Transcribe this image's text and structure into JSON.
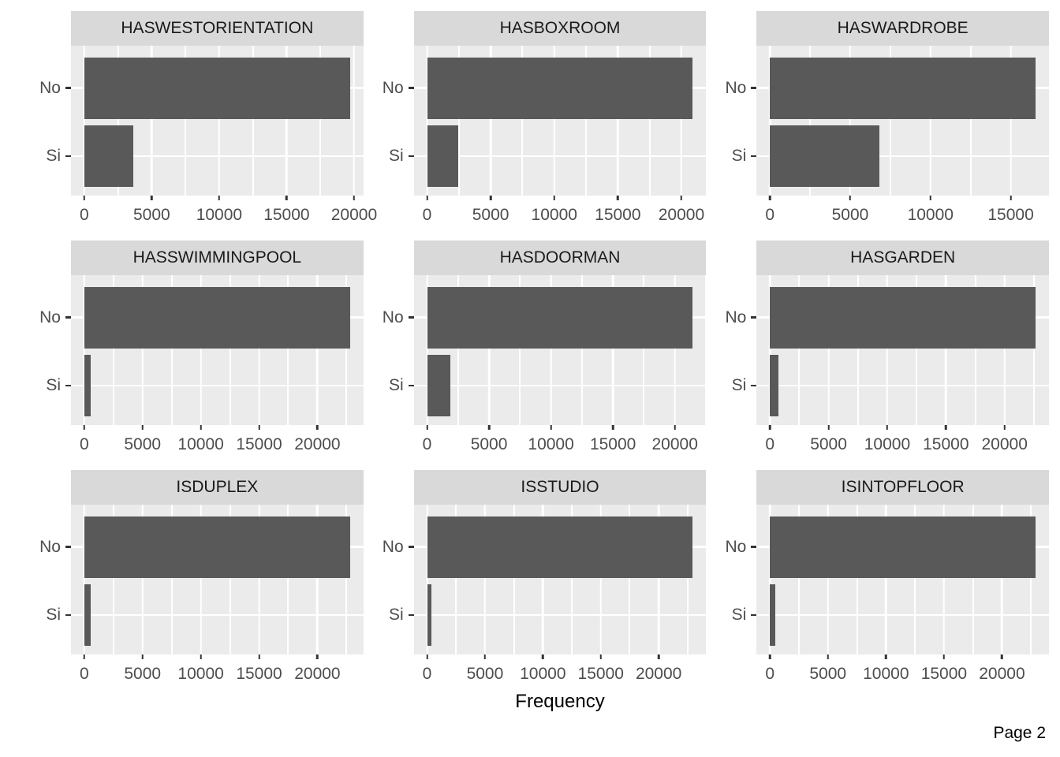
{
  "figure": {
    "xlabel": "Frequency",
    "page_label": "Page 2"
  },
  "style": {
    "bar_color": "#595959",
    "panel_bg": "#EBEBEB",
    "strip_bg": "#D9D9D9",
    "grid_color": "#FFFFFF",
    "axis_text_color": "#4D4D4D",
    "tick_mark_color": "#333333",
    "strip_text_color": "#1A1A1A",
    "background": "#FFFFFF"
  },
  "chart_data": [
    {
      "type": "bar",
      "orientation": "horizontal",
      "title": "HASWESTORIENTATION",
      "categories": [
        "No",
        "Si"
      ],
      "values": [
        19700,
        3650
      ],
      "x_ticks": [
        0,
        5000,
        10000,
        15000,
        20000
      ],
      "xlim": [
        -985,
        20685
      ],
      "grid": true
    },
    {
      "type": "bar",
      "orientation": "horizontal",
      "title": "HASBOXROOM",
      "categories": [
        "No",
        "Si"
      ],
      "values": [
        20900,
        2450
      ],
      "x_ticks": [
        0,
        5000,
        10000,
        15000,
        20000
      ],
      "xlim": [
        -1045,
        21945
      ],
      "grid": true
    },
    {
      "type": "bar",
      "orientation": "horizontal",
      "title": "HASWARDROBE",
      "categories": [
        "No",
        "Si"
      ],
      "values": [
        16550,
        6800
      ],
      "x_ticks": [
        0,
        5000,
        10000,
        15000
      ],
      "xlim": [
        -828,
        17378
      ],
      "grid": true
    },
    {
      "type": "bar",
      "orientation": "horizontal",
      "title": "HASSWIMMINGPOOL",
      "categories": [
        "No",
        "Si"
      ],
      "values": [
        22800,
        550
      ],
      "x_ticks": [
        0,
        5000,
        10000,
        15000,
        20000
      ],
      "xlim": [
        -1140,
        23940
      ],
      "grid": true
    },
    {
      "type": "bar",
      "orientation": "horizontal",
      "title": "HASDOORMAN",
      "categories": [
        "No",
        "Si"
      ],
      "values": [
        21450,
        1900
      ],
      "x_ticks": [
        0,
        5000,
        10000,
        15000,
        20000
      ],
      "xlim": [
        -1073,
        22523
      ],
      "grid": true
    },
    {
      "type": "bar",
      "orientation": "horizontal",
      "title": "HASGARDEN",
      "categories": [
        "No",
        "Si"
      ],
      "values": [
        22650,
        750
      ],
      "x_ticks": [
        0,
        5000,
        10000,
        15000,
        20000
      ],
      "xlim": [
        -1133,
        23783
      ],
      "grid": true
    },
    {
      "type": "bar",
      "orientation": "horizontal",
      "title": "ISDUPLEX",
      "categories": [
        "No",
        "Si"
      ],
      "values": [
        22800,
        550
      ],
      "x_ticks": [
        0,
        5000,
        10000,
        15000,
        20000
      ],
      "xlim": [
        -1140,
        23940
      ],
      "grid": true
    },
    {
      "type": "bar",
      "orientation": "horizontal",
      "title": "ISSTUDIO",
      "categories": [
        "No",
        "Si"
      ],
      "values": [
        22950,
        400
      ],
      "x_ticks": [
        0,
        5000,
        10000,
        15000,
        20000
      ],
      "xlim": [
        -1148,
        24098
      ],
      "grid": true
    },
    {
      "type": "bar",
      "orientation": "horizontal",
      "title": "ISINTOPFLOOR",
      "categories": [
        "No",
        "Si"
      ],
      "values": [
        22900,
        450
      ],
      "x_ticks": [
        0,
        5000,
        10000,
        15000,
        20000
      ],
      "xlim": [
        -1145,
        24045
      ],
      "grid": true
    }
  ]
}
